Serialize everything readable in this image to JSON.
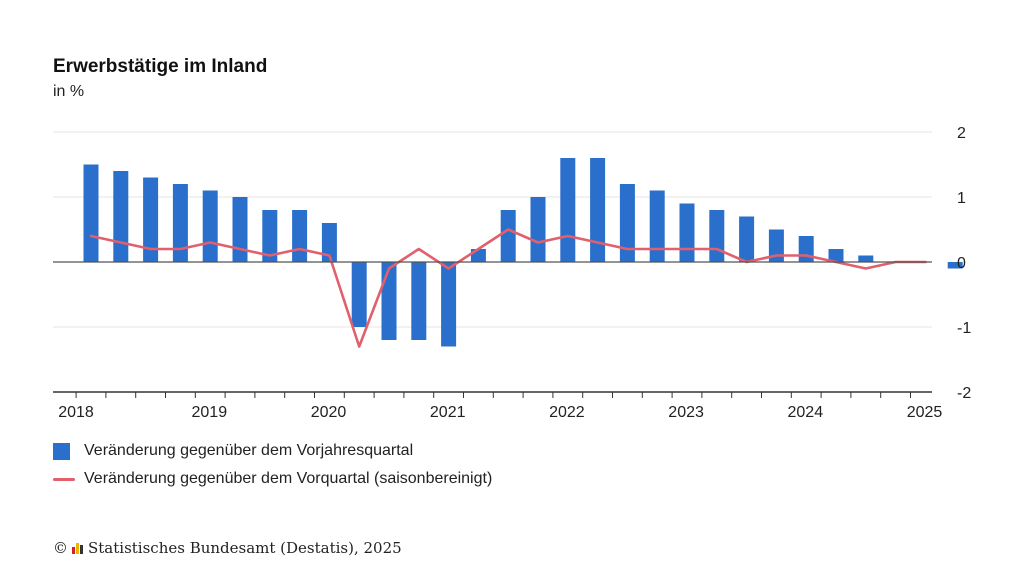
{
  "header": {
    "title": "Erwerbstätige im Inland",
    "subtitle": "in %"
  },
  "legend": {
    "bar_label": "Veränderung gegenüber dem Vorjahresquartal",
    "line_label": "Veränderung gegenüber dem Vorquartal (saisonbereinigt)"
  },
  "footer": {
    "copyright_symbol": "©",
    "source": "Statistisches Bundesamt (Destatis), 2025"
  },
  "colors": {
    "bar": "#2a6fcb",
    "line": "#e0606e",
    "grid": "#e4e4e4",
    "axis": "#333333",
    "logo": [
      "#cc2229",
      "#f0b400",
      "#333333"
    ]
  },
  "chart_data": {
    "type": "bar",
    "ylim": [
      -2,
      2
    ],
    "yticks": [
      "2",
      "1",
      "0",
      "-1",
      "-2"
    ],
    "year_labels": [
      "2018",
      "2019",
      "2020",
      "2021",
      "2022",
      "2023",
      "2024",
      "2025"
    ],
    "categories": [
      "2018 Q1",
      "2018 Q2",
      "2018 Q3",
      "2018 Q4",
      "2019 Q1",
      "2019 Q2",
      "2019 Q3",
      "2019 Q4",
      "2020 Q1",
      "2020 Q2",
      "2020 Q3",
      "2020 Q4",
      "2021 Q1",
      "2021 Q2",
      "2021 Q3",
      "2021 Q4",
      "2022 Q1",
      "2022 Q2",
      "2022 Q3",
      "2022 Q4",
      "2023 Q1",
      "2023 Q2",
      "2023 Q3",
      "2023 Q4",
      "2024 Q1",
      "2024 Q2",
      "2024 Q3",
      "2024 Q4",
      "2025 Q1",
      "2025 Q2"
    ],
    "series": [
      {
        "name": "Veränderung gegenüber dem Vorjahresquartal",
        "kind": "bar",
        "values": [
          1.5,
          1.4,
          1.3,
          1.2,
          1.1,
          1.0,
          0.8,
          0.8,
          0.6,
          -1.0,
          -1.2,
          -1.2,
          -1.3,
          0.2,
          0.8,
          1.0,
          1.6,
          1.6,
          1.2,
          1.1,
          0.9,
          0.8,
          0.7,
          0.5,
          0.4,
          0.2,
          0.1,
          0.0,
          0.0,
          -0.1
        ]
      },
      {
        "name": "Veränderung gegenüber dem Vorquartal (saisonbereinigt)",
        "kind": "line",
        "values": [
          0.4,
          0.3,
          0.2,
          0.2,
          0.3,
          0.2,
          0.1,
          0.2,
          0.1,
          -1.3,
          -0.1,
          0.2,
          -0.1,
          0.2,
          0.5,
          0.3,
          0.4,
          0.3,
          0.2,
          0.2,
          0.2,
          0.2,
          0.0,
          0.1,
          0.1,
          0.0,
          -0.1,
          0.0,
          0.0,
          null
        ]
      }
    ]
  }
}
